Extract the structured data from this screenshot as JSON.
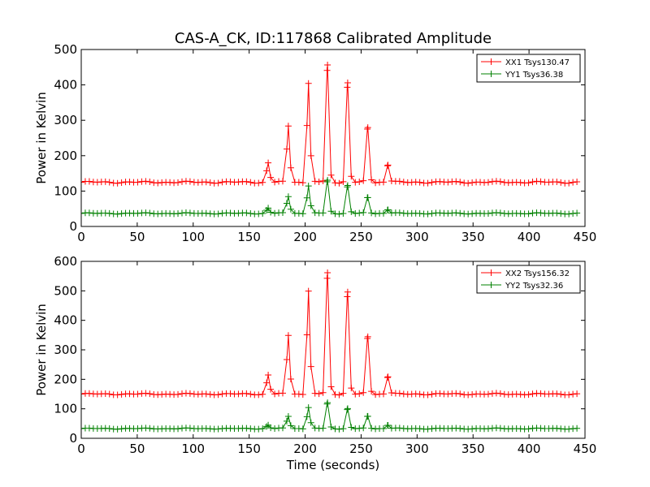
{
  "figure": {
    "title": "CAS-A_CK, ID:117868 Calibrated Amplitude",
    "xlabel": "Time (seconds)"
  },
  "chart_data": [
    {
      "type": "line",
      "title": "CAS-A_CK, ID:117868 Calibrated Amplitude",
      "xlabel": "",
      "ylabel": "Power in Kelvin",
      "xlim": [
        0,
        450
      ],
      "ylim": [
        0,
        500
      ],
      "xticks": [
        0,
        50,
        100,
        150,
        200,
        250,
        300,
        350,
        400,
        450
      ],
      "yticks": [
        0,
        100,
        200,
        300,
        400,
        500
      ],
      "legend": "top-right",
      "grid": false,
      "x": {
        "start": 0,
        "end": 445,
        "step": 3.6
      },
      "series": [
        {
          "name": "XX1 Tsys130.47",
          "color": "#ff0000",
          "marker": "+",
          "baseline": 125,
          "ripple": 3,
          "peaks": [
            {
              "x": 167,
              "value": 180
            },
            {
              "x": 185,
              "value": 285
            },
            {
              "x": 203,
              "value": 405
            },
            {
              "x": 220,
              "value": 455
            },
            {
              "x": 238,
              "value": 405
            },
            {
              "x": 256,
              "value": 280
            },
            {
              "x": 274,
              "value": 175
            }
          ]
        },
        {
          "name": "YY1 Tsys36.38",
          "color": "#008000",
          "marker": "+",
          "baseline": 37,
          "ripple": 2,
          "peaks": [
            {
              "x": 167,
              "value": 52
            },
            {
              "x": 185,
              "value": 85
            },
            {
              "x": 203,
              "value": 115
            },
            {
              "x": 220,
              "value": 130
            },
            {
              "x": 238,
              "value": 115
            },
            {
              "x": 256,
              "value": 82
            },
            {
              "x": 274,
              "value": 48
            }
          ]
        }
      ]
    },
    {
      "type": "line",
      "title": "",
      "xlabel": "Time (seconds)",
      "ylabel": "Power in Kelvin",
      "xlim": [
        0,
        450
      ],
      "ylim": [
        0,
        600
      ],
      "xticks": [
        0,
        50,
        100,
        150,
        200,
        250,
        300,
        350,
        400,
        450
      ],
      "yticks": [
        0,
        100,
        200,
        300,
        400,
        500,
        600
      ],
      "legend": "top-right",
      "grid": false,
      "x": {
        "start": 0,
        "end": 445,
        "step": 3.6
      },
      "series": [
        {
          "name": "XX2 Tsys156.32",
          "color": "#ff0000",
          "marker": "+",
          "baseline": 150,
          "ripple": 3,
          "peaks": [
            {
              "x": 167,
              "value": 215
            },
            {
              "x": 185,
              "value": 350
            },
            {
              "x": 203,
              "value": 500
            },
            {
              "x": 220,
              "value": 560
            },
            {
              "x": 238,
              "value": 495
            },
            {
              "x": 256,
              "value": 345
            },
            {
              "x": 274,
              "value": 210
            }
          ]
        },
        {
          "name": "YY2 Tsys32.36",
          "color": "#008000",
          "marker": "+",
          "baseline": 33,
          "ripple": 2,
          "peaks": [
            {
              "x": 167,
              "value": 45
            },
            {
              "x": 185,
              "value": 75
            },
            {
              "x": 203,
              "value": 105
            },
            {
              "x": 220,
              "value": 120
            },
            {
              "x": 238,
              "value": 100
            },
            {
              "x": 256,
              "value": 75
            },
            {
              "x": 274,
              "value": 45
            }
          ]
        }
      ]
    }
  ]
}
